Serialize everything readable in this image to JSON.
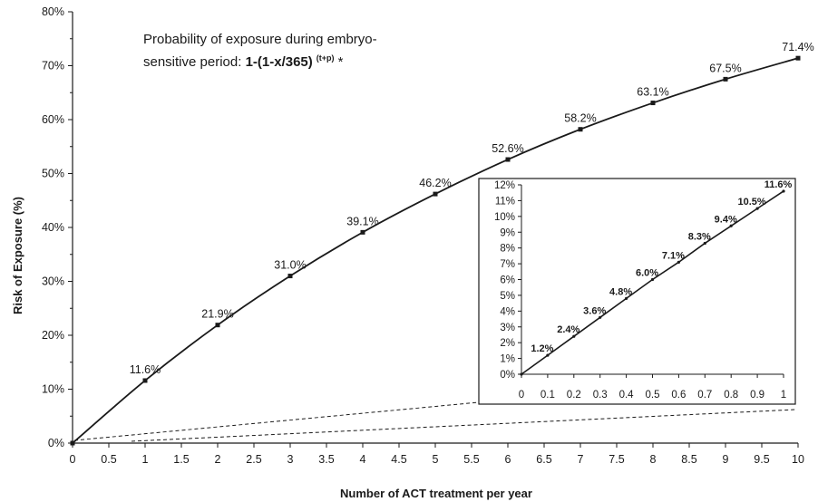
{
  "chart_data": [
    {
      "type": "line",
      "xlabel": "Number of ACT treatment per year",
      "ylabel": "Risk of Exposure (%)",
      "xlim": [
        0,
        10
      ],
      "ylim": [
        0,
        80
      ],
      "x_ticks": [
        "0",
        "0.5",
        "1",
        "1.5",
        "2",
        "2.5",
        "3",
        "3.5",
        "4",
        "4.5",
        "5",
        "5.5",
        "6",
        "6.5",
        "7",
        "7.5",
        "8",
        "8.5",
        "9",
        "9.5",
        "10"
      ],
      "y_ticks": [
        "0%",
        "10%",
        "20%",
        "30%",
        "40%",
        "50%",
        "60%",
        "70%",
        "80%"
      ],
      "annotation": {
        "line1": "Probability of exposure during embryo-",
        "line2_prefix": "sensitive period: ",
        "formula": "1-(1-x/365)",
        "superscript": "(t+p)",
        "suffix": " *"
      },
      "grid": false,
      "series": [
        {
          "x": [
            0,
            1,
            2,
            3,
            4,
            5,
            6,
            7,
            8,
            9,
            10
          ],
          "y": [
            0,
            11.6,
            21.9,
            31.0,
            39.1,
            46.2,
            52.6,
            58.2,
            63.1,
            67.5,
            71.4
          ],
          "labels": [
            "",
            "11.6%",
            "21.9%",
            "31.0%",
            "39.1%",
            "46.2%",
            "52.6%",
            "58.2%",
            "63.1%",
            "67.5%",
            "71.4%"
          ]
        }
      ]
    },
    {
      "type": "line",
      "inset": true,
      "xlim": [
        0,
        1
      ],
      "ylim": [
        0,
        12
      ],
      "x_ticks": [
        "0",
        "0.1",
        "0.2",
        "0.3",
        "0.4",
        "0.5",
        "0.6",
        "0.7",
        "0.8",
        "0.9",
        "1"
      ],
      "y_ticks": [
        "0%",
        "1%",
        "2%",
        "3%",
        "4%",
        "5%",
        "6%",
        "7%",
        "8%",
        "9%",
        "10%",
        "11%",
        "12%"
      ],
      "grid": false,
      "series": [
        {
          "x": [
            0,
            0.1,
            0.2,
            0.3,
            0.4,
            0.5,
            0.6,
            0.7,
            0.8,
            0.9,
            1.0
          ],
          "y": [
            0,
            1.2,
            2.4,
            3.6,
            4.8,
            6.0,
            7.1,
            8.3,
            9.4,
            10.5,
            11.6
          ],
          "labels": [
            "",
            "1.2%",
            "2.4%",
            "3.6%",
            "4.8%",
            "6.0%",
            "7.1%",
            "8.3%",
            "9.4%",
            "10.5%",
            "11.6%"
          ]
        }
      ]
    }
  ]
}
